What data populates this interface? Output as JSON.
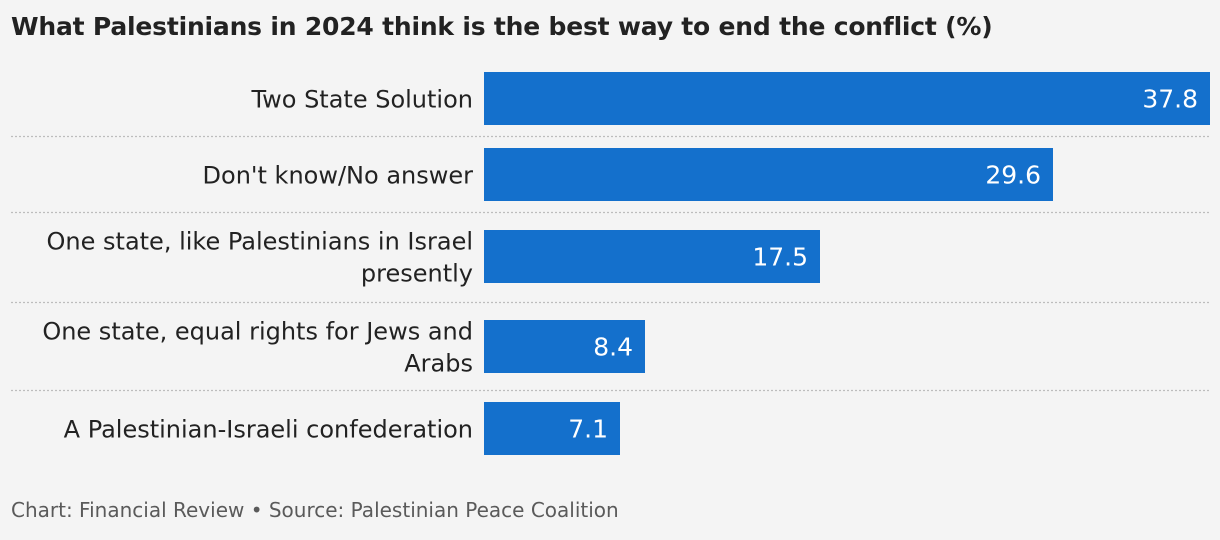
{
  "title": "What Palestinians in 2024 think is the best way to end the conflict (%)",
  "footer": "Chart: Financial Review • Source: Palestinian Peace Coalition",
  "colors": {
    "bar": "#1470cc",
    "value_label": "#ffffff",
    "category_label": "#222222",
    "divider": "#bdbdbd"
  },
  "chart_data": {
    "type": "bar",
    "orientation": "horizontal",
    "categories": [
      "Two State Solution",
      "Don't know/No answer",
      "One state, like Palestinians in Israel presently",
      "One state, equal rights for Jews and Arabs",
      "A Palestinian-Israeli confederation"
    ],
    "category_lines": [
      [
        "Two State Solution"
      ],
      [
        "Don't know/No answer"
      ],
      [
        "One state, like Palestinians in Israel",
        "presently"
      ],
      [
        "One state, equal rights for Jews and",
        "Arabs"
      ],
      [
        "A Palestinian-Israeli confederation"
      ]
    ],
    "values": [
      37.8,
      29.6,
      17.5,
      8.4,
      7.1
    ],
    "value_labels": [
      "37.8",
      "29.6",
      "17.5",
      "8.4",
      "7.1"
    ],
    "xlim": [
      0,
      37.8
    ],
    "grid": false
  }
}
